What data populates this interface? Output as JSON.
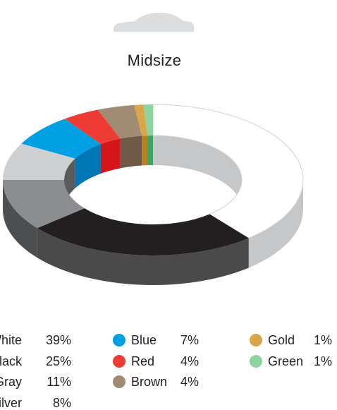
{
  "chart_data": {
    "type": "pie",
    "title": "Midsize",
    "categories": [
      "White",
      "Black",
      "Gray",
      "Silver",
      "Blue",
      "Red",
      "Brown",
      "Gold",
      "Green"
    ],
    "values": [
      39,
      25,
      11,
      8,
      7,
      4,
      4,
      1,
      1
    ],
    "value_labels": [
      "39%",
      "25%",
      "11%",
      "8%",
      "7%",
      "4%",
      "4%",
      "1%",
      "1%"
    ],
    "colors": [
      "#ffffff",
      "#231f20",
      "#8c8d8f",
      "#cfd0d1",
      "#00a0e3",
      "#ee3b33",
      "#a28b74",
      "#d9a748",
      "#8fd3a0"
    ],
    "side_colors": [
      "#c6c7c8",
      "#4a4a4b",
      "#4d4e50",
      "#5a5b5d",
      "#0076b4",
      "#d4161c",
      "#6f5a47",
      "#b5821f",
      "#3aa564"
    ],
    "legend_position": "bottom",
    "icon": "car-icon"
  }
}
